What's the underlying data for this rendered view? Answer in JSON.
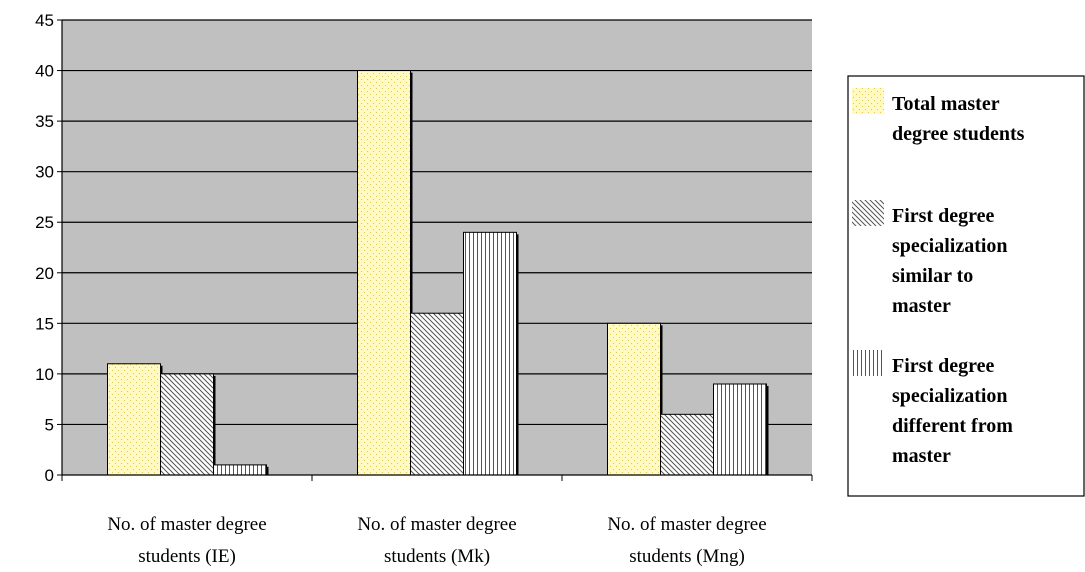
{
  "chart_data": {
    "type": "bar",
    "categories": [
      [
        "No. of master degree",
        "students (IE)"
      ],
      [
        "No. of master degree",
        "students (Mk)"
      ],
      [
        "No. of master degree",
        "students (Mng)"
      ]
    ],
    "series": [
      {
        "name": [
          "Total master",
          "degree students"
        ],
        "values": [
          11,
          40,
          15
        ],
        "pattern": "dots",
        "color": "#fff9c4"
      },
      {
        "name": [
          "First degree",
          "specialization",
          "similar to",
          "master"
        ],
        "values": [
          10,
          16,
          6
        ],
        "pattern": "diagonal",
        "color": "#ffffff"
      },
      {
        "name": [
          "First degree",
          "specialization",
          "different from",
          " master"
        ],
        "values": [
          1,
          24,
          9
        ],
        "pattern": "vertical",
        "color": "#ffffff"
      }
    ],
    "yticks": [
      0,
      5,
      10,
      15,
      20,
      25,
      30,
      35,
      40,
      45
    ],
    "ylim": [
      0,
      45
    ],
    "grid": true,
    "plot_background": "#c0c0c0",
    "legend_position": "right"
  }
}
